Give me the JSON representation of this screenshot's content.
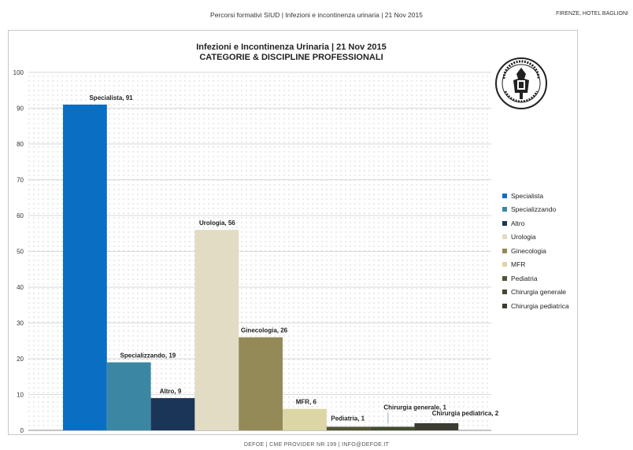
{
  "header": {
    "title": "Percorsi formativi SIUD | Infezioni e incontinenza urinaria | 21 Nov 2015",
    "location": "FIRENZE, HOTEL BAGLIONI"
  },
  "footer": {
    "text": "DEFOE | CME PROVIDER NR 199 | INFO@DEFOE.IT"
  },
  "logo": {
    "text": "Società Italiana di Urodinamica"
  },
  "chart_data": {
    "type": "bar",
    "title": "Infezioni e Incontinenza Urinaria | 21 Nov 2015",
    "subtitle": "CATEGORIE & DISCIPLINE PROFESSIONALI",
    "xlabel": "",
    "ylabel": "",
    "ylim": [
      0,
      100
    ],
    "yticks": [
      0,
      10,
      20,
      30,
      40,
      50,
      60,
      70,
      80,
      90,
      100
    ],
    "grid": true,
    "legend_position": "right",
    "categories": [
      "Specialista",
      "Specializzando",
      "Altro",
      "Urologia",
      "Ginecologia",
      "MFR",
      "Pediatria",
      "Chirurgia generale",
      "Chirurgia pediatrica"
    ],
    "values": [
      91,
      19,
      9,
      56,
      26,
      6,
      1,
      1,
      2
    ],
    "colors": [
      "#0a6fc2",
      "#3b87a3",
      "#1b3558",
      "#e2dcc4",
      "#948a58",
      "#dcd6a6",
      "#545434",
      "#414b31",
      "#3c3c32"
    ],
    "data_labels": [
      "Specialista, 91",
      "Specializzando, 19",
      "Altro, 9",
      "Urologia, 56",
      "Ginecologia, 26",
      "MFR, 6",
      "Pediatria, 1",
      "Chirurgia generale, 1",
      "Chirurgia pediatrica, 2"
    ]
  }
}
